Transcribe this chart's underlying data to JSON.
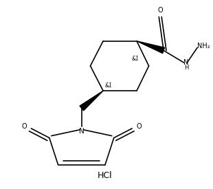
{
  "background_color": "#ffffff",
  "line_color": "#000000",
  "figsize": [
    3.1,
    2.75
  ],
  "dpi": 100,
  "hcl_label": "HCl",
  "o_label": "O",
  "n_label": "N",
  "nh_label": "H",
  "nh2_label": "NH₂",
  "stereo1": "&1",
  "stereo2": "&1",
  "o1_label": "O",
  "o2_label": "O"
}
